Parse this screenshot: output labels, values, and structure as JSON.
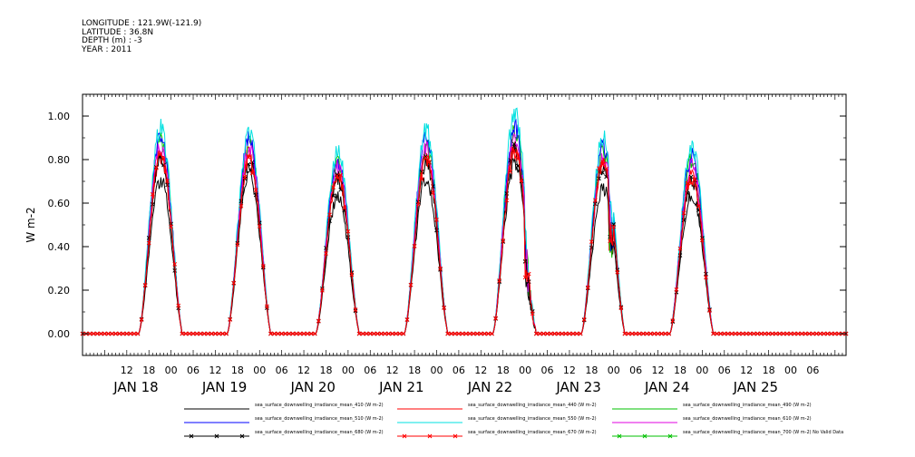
{
  "header": {
    "longitude": "LONGITUDE : 121.9W(-121.9)",
    "latitude": "LATITUDE : 36.8N",
    "depth": "DEPTH (m) : -3",
    "year": "YEAR : 2011"
  },
  "chart_data": {
    "type": "line",
    "ylabel": "W m-2",
    "ylim": [
      -0.1,
      1.1
    ],
    "yticks": [
      "0.00",
      "0.20",
      "0.40",
      "0.60",
      "0.80",
      "1.00"
    ],
    "yticks_values": [
      0,
      0.2,
      0.4,
      0.6,
      0.8,
      1.0
    ],
    "xlim_hours": [
      0,
      207
    ],
    "x_hour_ticks": [
      "12",
      "18",
      "00",
      "06",
      "12",
      "18",
      "00",
      "06",
      "12",
      "18",
      "00",
      "06",
      "12",
      "18",
      "00",
      "06",
      "12",
      "18",
      "00",
      "06",
      "12",
      "18",
      "00",
      "06",
      "12",
      "18",
      "00",
      "06",
      "12",
      "18",
      "00",
      "06"
    ],
    "day_labels": [
      "JAN 18",
      "JAN 19",
      "JAN 20",
      "JAN 21",
      "JAN 22",
      "JAN 23",
      "JAN 24",
      "JAN 25"
    ],
    "grid": false,
    "days": [
      "JAN 18",
      "JAN 19",
      "JAN 20",
      "JAN 21",
      "JAN 22",
      "JAN 23",
      "JAN 24"
    ],
    "series": [
      {
        "name": "sea_surface_downwelling_irradiance_mean_410 (W m-2)",
        "color": "#000000",
        "marker": "",
        "peaks": [
          0.72,
          0.75,
          0.64,
          0.72,
          0.8,
          0.68,
          0.65
        ]
      },
      {
        "name": "sea_surface_downwelling_irradiance_mean_440 (W m-2)",
        "color": "#ff0000",
        "marker": "",
        "peaks": [
          0.84,
          0.84,
          0.74,
          0.84,
          0.88,
          0.8,
          0.75
        ]
      },
      {
        "name": "sea_surface_downwelling_irradiance_mean_490 (W m-2)",
        "color": "#00c000",
        "marker": "",
        "peaks": [
          0.91,
          0.89,
          0.8,
          0.89,
          0.95,
          0.85,
          0.82
        ]
      },
      {
        "name": "sea_surface_downwelling_irradiance_mean_510 (W m-2)",
        "color": "#0000ff",
        "marker": "",
        "peaks": [
          0.93,
          0.91,
          0.81,
          0.91,
          0.97,
          0.88,
          0.84
        ]
      },
      {
        "name": "sea_surface_downwelling_irradiance_mean_550 (W m-2)",
        "color": "#00e0e0",
        "marker": "",
        "peaks": [
          0.96,
          0.94,
          0.85,
          0.95,
          1.03,
          0.93,
          0.88
        ]
      },
      {
        "name": "sea_surface_downwelling_irradiance_mean_610 (W m-2)",
        "color": "#e000e0",
        "marker": "",
        "peaks": [
          0.87,
          0.86,
          0.78,
          0.86,
          0.92,
          0.82,
          0.79
        ]
      },
      {
        "name": "sea_surface_downwelling_irradiance_mean_680 (W m-2)",
        "color": "#000000",
        "marker": "x",
        "peaks": [
          0.82,
          0.8,
          0.73,
          0.8,
          0.85,
          0.79,
          0.72
        ]
      },
      {
        "name": "sea_surface_downwelling_irradiance_mean_670 (W m-2)",
        "color": "#ff0000",
        "marker": "x",
        "peaks": [
          0.83,
          0.82,
          0.74,
          0.82,
          0.86,
          0.8,
          0.73
        ]
      },
      {
        "name": "sea_surface_downwelling_irradiance_mean_700 (W m-2) No Valid Data",
        "color": "#00c000",
        "marker": "x",
        "peaks": []
      }
    ]
  }
}
